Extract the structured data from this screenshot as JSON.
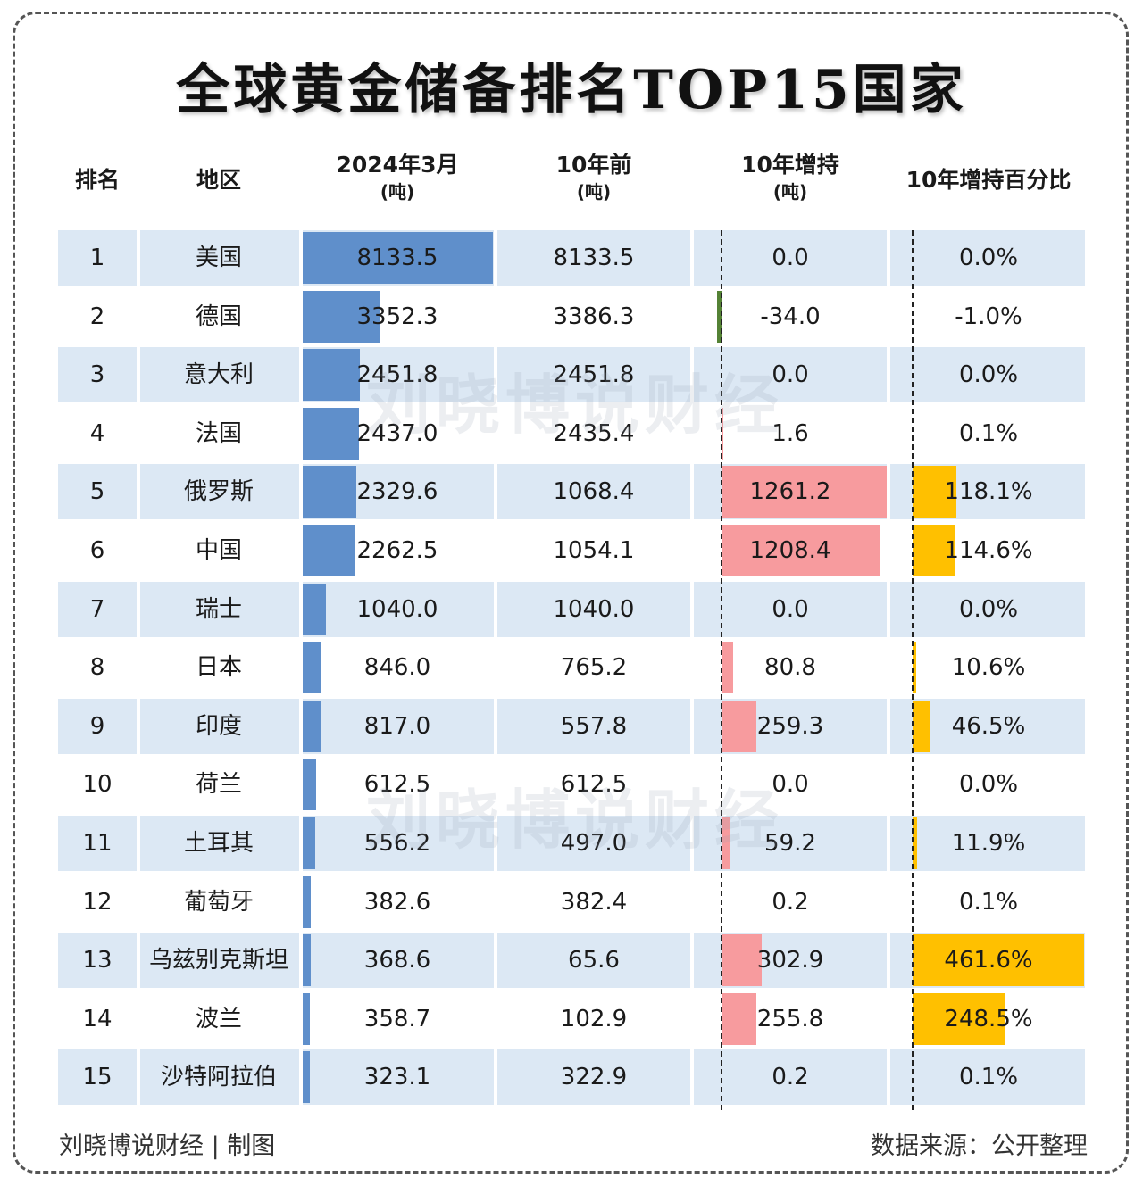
{
  "title": "全球黄金储备排名TOP15国家",
  "headers": {
    "rank": "排名",
    "region": "地区",
    "current": "2024年3月",
    "current_unit": "(吨)",
    "ago": "10年前",
    "ago_unit": "(吨)",
    "change": "10年增持",
    "change_unit": "(吨)",
    "pct": "10年增持百分比"
  },
  "footer": {
    "left": "刘晓博说财经 | 制图",
    "right": "数据来源：公开整理"
  },
  "watermark": "刘晓博说财经",
  "colors": {
    "stripe": "#dce8f4",
    "current_bar": "#5f8fcb",
    "increase_bar": "#f79b9e",
    "decrease_bar": "#548235",
    "pct_bar": "#ffc000"
  },
  "chart_data": {
    "type": "table",
    "columns": [
      "排名",
      "地区",
      "2024年3月(吨)",
      "10年前(吨)",
      "10年增持(吨)",
      "10年增持百分比"
    ],
    "rows": [
      {
        "rank": "1",
        "region": "美国",
        "current": 8133.5,
        "ago": 8133.5,
        "change": 0.0,
        "pct": 0.0,
        "current_t": "8133.5",
        "ago_t": "8133.5",
        "change_t": "0.0",
        "pct_t": "0.0%"
      },
      {
        "rank": "2",
        "region": "德国",
        "current": 3352.3,
        "ago": 3386.3,
        "change": -34.0,
        "pct": -1.0,
        "current_t": "3352.3",
        "ago_t": "3386.3",
        "change_t": "-34.0",
        "pct_t": "-1.0%"
      },
      {
        "rank": "3",
        "region": "意大利",
        "current": 2451.8,
        "ago": 2451.8,
        "change": 0.0,
        "pct": 0.0,
        "current_t": "2451.8",
        "ago_t": "2451.8",
        "change_t": "0.0",
        "pct_t": "0.0%"
      },
      {
        "rank": "4",
        "region": "法国",
        "current": 2437.0,
        "ago": 2435.4,
        "change": 1.6,
        "pct": 0.1,
        "current_t": "2437.0",
        "ago_t": "2435.4",
        "change_t": "1.6",
        "pct_t": "0.1%"
      },
      {
        "rank": "5",
        "region": "俄罗斯",
        "current": 2329.6,
        "ago": 1068.4,
        "change": 1261.2,
        "pct": 118.1,
        "current_t": "2329.6",
        "ago_t": "1068.4",
        "change_t": "1261.2",
        "pct_t": "118.1%"
      },
      {
        "rank": "6",
        "region": "中国",
        "current": 2262.5,
        "ago": 1054.1,
        "change": 1208.4,
        "pct": 114.6,
        "current_t": "2262.5",
        "ago_t": "1054.1",
        "change_t": "1208.4",
        "pct_t": "114.6%"
      },
      {
        "rank": "7",
        "region": "瑞士",
        "current": 1040.0,
        "ago": 1040.0,
        "change": 0.0,
        "pct": 0.0,
        "current_t": "1040.0",
        "ago_t": "1040.0",
        "change_t": "0.0",
        "pct_t": "0.0%"
      },
      {
        "rank": "8",
        "region": "日本",
        "current": 846.0,
        "ago": 765.2,
        "change": 80.8,
        "pct": 10.6,
        "current_t": "846.0",
        "ago_t": "765.2",
        "change_t": "80.8",
        "pct_t": "10.6%"
      },
      {
        "rank": "9",
        "region": "印度",
        "current": 817.0,
        "ago": 557.8,
        "change": 259.3,
        "pct": 46.5,
        "current_t": "817.0",
        "ago_t": "557.8",
        "change_t": "259.3",
        "pct_t": "46.5%"
      },
      {
        "rank": "10",
        "region": "荷兰",
        "current": 612.5,
        "ago": 612.5,
        "change": 0.0,
        "pct": 0.0,
        "current_t": "612.5",
        "ago_t": "612.5",
        "change_t": "0.0",
        "pct_t": "0.0%"
      },
      {
        "rank": "11",
        "region": "土耳其",
        "current": 556.2,
        "ago": 497.0,
        "change": 59.2,
        "pct": 11.9,
        "current_t": "556.2",
        "ago_t": "497.0",
        "change_t": "59.2",
        "pct_t": "11.9%"
      },
      {
        "rank": "12",
        "region": "葡萄牙",
        "current": 382.6,
        "ago": 382.4,
        "change": 0.2,
        "pct": 0.1,
        "current_t": "382.6",
        "ago_t": "382.4",
        "change_t": "0.2",
        "pct_t": "0.1%"
      },
      {
        "rank": "13",
        "region": "乌兹别克斯坦",
        "current": 368.6,
        "ago": 65.6,
        "change": 302.9,
        "pct": 461.6,
        "current_t": "368.6",
        "ago_t": "65.6",
        "change_t": "302.9",
        "pct_t": "461.6%"
      },
      {
        "rank": "14",
        "region": "波兰",
        "current": 358.7,
        "ago": 102.9,
        "change": 255.8,
        "pct": 248.5,
        "current_t": "358.7",
        "ago_t": "102.9",
        "change_t": "255.8",
        "pct_t": "248.5%"
      },
      {
        "rank": "15",
        "region": "沙特阿拉伯",
        "current": 323.1,
        "ago": 322.9,
        "change": 0.2,
        "pct": 0.1,
        "current_t": "323.1",
        "ago_t": "322.9",
        "change_t": "0.2",
        "pct_t": "0.1%"
      }
    ]
  }
}
